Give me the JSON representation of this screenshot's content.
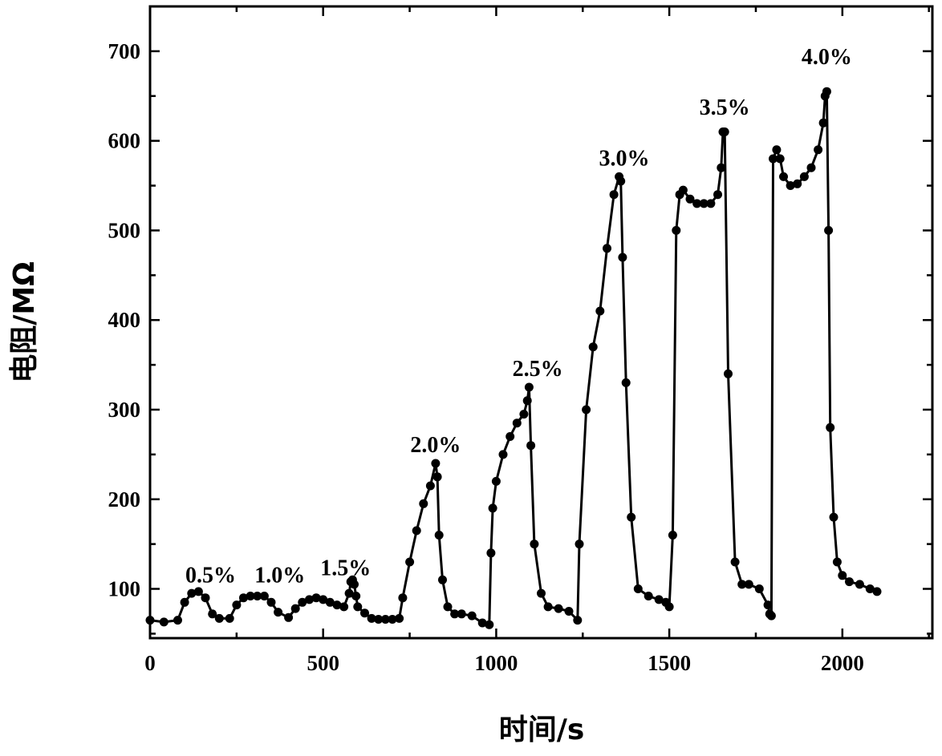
{
  "chart_data": {
    "type": "line",
    "title": "",
    "xlabel": "时间/s",
    "ylabel": "电阻/MΩ",
    "xlim": [
      0,
      2260
    ],
    "ylim": [
      45,
      750
    ],
    "x_ticks": [
      0,
      500,
      1000,
      1500,
      2000
    ],
    "y_ticks": [
      100,
      200,
      300,
      400,
      500,
      600,
      700
    ],
    "x_tick_labels": [
      "0",
      "500",
      "1000",
      "1500",
      "2000"
    ],
    "y_tick_labels": [
      "100",
      "200",
      "300",
      "400",
      "500",
      "600",
      "700"
    ],
    "grid": false,
    "legend": "none",
    "color": "#000000",
    "series": [
      {
        "x": [
          0,
          40,
          80,
          100,
          120,
          140,
          160,
          180,
          200,
          230,
          250,
          270,
          290,
          310,
          330,
          350,
          370,
          400,
          420,
          440,
          460,
          480,
          500,
          520,
          540,
          560,
          575,
          580,
          585,
          590,
          595,
          600,
          620,
          640,
          660,
          680,
          700,
          720,
          730,
          750,
          770,
          790,
          810,
          825,
          830,
          835,
          845,
          860,
          880,
          900,
          930,
          960,
          980,
          985,
          990,
          1000,
          1020,
          1040,
          1060,
          1080,
          1090,
          1095,
          1100,
          1110,
          1130,
          1150,
          1180,
          1210,
          1235,
          1240,
          1260,
          1280,
          1300,
          1320,
          1340,
          1355,
          1360,
          1365,
          1375,
          1390,
          1410,
          1440,
          1470,
          1490,
          1500,
          1510,
          1520,
          1530,
          1540,
          1560,
          1580,
          1600,
          1620,
          1640,
          1650,
          1655,
          1660,
          1670,
          1690,
          1710,
          1730,
          1760,
          1785,
          1790,
          1795,
          1800,
          1810,
          1820,
          1830,
          1850,
          1870,
          1890,
          1910,
          1930,
          1945,
          1950,
          1955,
          1960,
          1965,
          1975,
          1985,
          2000,
          2020,
          2050,
          2080,
          2100
        ],
        "y": [
          65,
          63,
          65,
          85,
          95,
          97,
          90,
          72,
          67,
          67,
          82,
          90,
          92,
          92,
          92,
          85,
          74,
          68,
          78,
          85,
          88,
          90,
          88,
          85,
          82,
          80,
          95,
          108,
          110,
          105,
          92,
          80,
          73,
          67,
          66,
          66,
          66,
          67,
          90,
          130,
          165,
          195,
          215,
          240,
          225,
          160,
          110,
          80,
          72,
          72,
          70,
          62,
          60,
          140,
          190,
          220,
          250,
          270,
          285,
          295,
          310,
          325,
          260,
          150,
          95,
          80,
          78,
          75,
          65,
          150,
          300,
          370,
          410,
          480,
          540,
          560,
          555,
          470,
          330,
          180,
          100,
          92,
          88,
          85,
          80,
          160,
          500,
          540,
          545,
          535,
          530,
          530,
          530,
          540,
          570,
          610,
          610,
          340,
          130,
          105,
          105,
          100,
          82,
          72,
          70,
          580,
          590,
          580,
          560,
          550,
          552,
          560,
          570,
          590,
          620,
          650,
          655,
          500,
          280,
          180,
          130,
          115,
          108,
          105,
          100,
          97
        ]
      }
    ],
    "annotations": [
      {
        "text": "0.5%",
        "x": 175,
        "y": 102
      },
      {
        "text": "1.0%",
        "x": 375,
        "y": 102
      },
      {
        "text": "1.5%",
        "x": 565,
        "y": 110
      },
      {
        "text": "2.0%",
        "x": 825,
        "y": 247
      },
      {
        "text": "2.5%",
        "x": 1120,
        "y": 332
      },
      {
        "text": "3.0%",
        "x": 1370,
        "y": 567
      },
      {
        "text": "3.5%",
        "x": 1660,
        "y": 624
      },
      {
        "text": "4.0%",
        "x": 1955,
        "y": 680
      }
    ]
  }
}
